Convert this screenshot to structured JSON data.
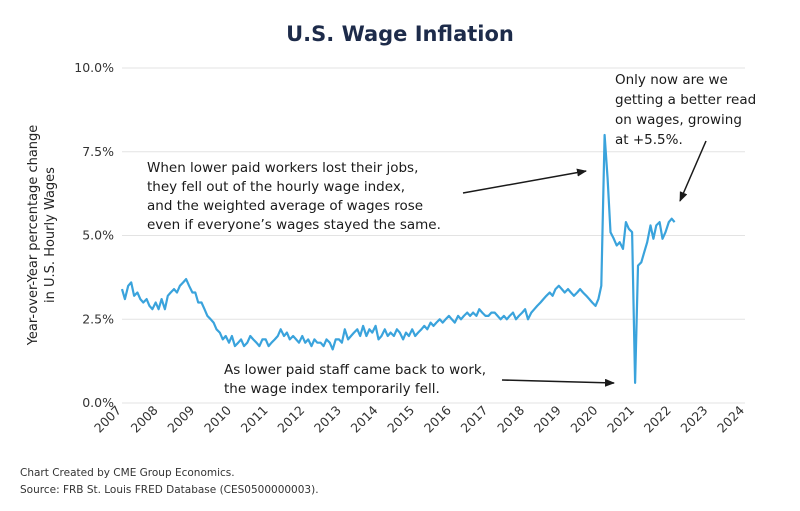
{
  "chart_data": {
    "type": "line",
    "title": "U.S. Wage Inflation",
    "ylabel_lines": [
      "Year-over-Year percentage change",
      "in U.S. Hourly Wages"
    ],
    "xlabel": "",
    "x_ticks": [
      "2007",
      "2008",
      "2009",
      "2010",
      "2011",
      "2012",
      "2013",
      "2014",
      "2015",
      "2016",
      "2017",
      "2018",
      "2019",
      "2020",
      "2021",
      "2022",
      "2023",
      "2024"
    ],
    "xlim": [
      2007,
      2024
    ],
    "y_ticks": [
      {
        "value": 0.0,
        "label": "0.0%"
      },
      {
        "value": 2.5,
        "label": "2.5%"
      },
      {
        "value": 5.0,
        "label": "5.0%"
      },
      {
        "value": 7.5,
        "label": "7.5%"
      },
      {
        "value": 10.0,
        "label": "10.0%"
      }
    ],
    "ylim": [
      0,
      10
    ],
    "grid": true,
    "line_color": "#3aa3dc",
    "series": [
      {
        "x": [
          2007.0,
          2007.08,
          2007.17,
          2007.25,
          2007.33,
          2007.42,
          2007.5,
          2007.58,
          2007.67,
          2007.75,
          2007.83,
          2007.92,
          2008.0,
          2008.08,
          2008.17,
          2008.25,
          2008.33,
          2008.42,
          2008.5,
          2008.58,
          2008.67,
          2008.75,
          2008.83,
          2008.92,
          2009.0,
          2009.08,
          2009.17,
          2009.25,
          2009.33,
          2009.42,
          2009.5,
          2009.58,
          2009.67,
          2009.75,
          2009.83,
          2009.92,
          2010.0,
          2010.08,
          2010.17,
          2010.25,
          2010.33,
          2010.42,
          2010.5,
          2010.58,
          2010.67,
          2010.75,
          2010.83,
          2010.92,
          2011.0,
          2011.08,
          2011.17,
          2011.25,
          2011.33,
          2011.42,
          2011.5,
          2011.58,
          2011.67,
          2011.75,
          2011.83,
          2011.92,
          2012.0,
          2012.08,
          2012.17,
          2012.25,
          2012.33,
          2012.42,
          2012.5,
          2012.58,
          2012.67,
          2012.75,
          2012.83,
          2012.92,
          2013.0,
          2013.08,
          2013.17,
          2013.25,
          2013.33,
          2013.42,
          2013.5,
          2013.58,
          2013.67,
          2013.75,
          2013.83,
          2013.92,
          2014.0,
          2014.08,
          2014.17,
          2014.25,
          2014.33,
          2014.42,
          2014.5,
          2014.58,
          2014.67,
          2014.75,
          2014.83,
          2014.92,
          2015.0,
          2015.08,
          2015.17,
          2015.25,
          2015.33,
          2015.42,
          2015.5,
          2015.58,
          2015.67,
          2015.75,
          2015.83,
          2015.92,
          2016.0,
          2016.08,
          2016.17,
          2016.25,
          2016.33,
          2016.42,
          2016.5,
          2016.58,
          2016.67,
          2016.75,
          2016.83,
          2016.92,
          2017.0,
          2017.08,
          2017.17,
          2017.25,
          2017.33,
          2017.42,
          2017.5,
          2017.58,
          2017.67,
          2017.75,
          2017.83,
          2017.92,
          2018.0,
          2018.08,
          2018.17,
          2018.25,
          2018.33,
          2018.42,
          2018.5,
          2018.58,
          2018.67,
          2018.75,
          2018.83,
          2018.92,
          2019.0,
          2019.08,
          2019.17,
          2019.25,
          2019.33,
          2019.42,
          2019.5,
          2019.58,
          2019.67,
          2019.75,
          2019.83,
          2019.92,
          2020.0,
          2020.08,
          2020.17,
          2020.25,
          2020.33,
          2020.42,
          2020.5,
          2020.58,
          2020.67,
          2020.75,
          2020.83,
          2020.92,
          2021.0,
          2021.08,
          2021.17,
          2021.25,
          2021.33,
          2021.42,
          2021.5,
          2021.58,
          2021.67,
          2021.75,
          2021.83,
          2021.92,
          2022.0,
          2022.08
        ],
        "y": [
          3.4,
          3.1,
          3.5,
          3.6,
          3.2,
          3.3,
          3.1,
          3.0,
          3.1,
          2.9,
          2.8,
          3.0,
          2.8,
          3.1,
          2.8,
          3.2,
          3.3,
          3.4,
          3.3,
          3.5,
          3.6,
          3.7,
          3.5,
          3.3,
          3.3,
          3.0,
          3.0,
          2.8,
          2.6,
          2.5,
          2.4,
          2.2,
          2.1,
          1.9,
          2.0,
          1.8,
          2.0,
          1.7,
          1.8,
          1.9,
          1.7,
          1.8,
          2.0,
          1.9,
          1.8,
          1.7,
          1.9,
          1.9,
          1.7,
          1.8,
          1.9,
          2.0,
          2.2,
          2.0,
          2.1,
          1.9,
          2.0,
          1.9,
          1.8,
          2.0,
          1.8,
          1.9,
          1.7,
          1.9,
          1.8,
          1.8,
          1.7,
          1.9,
          1.8,
          1.6,
          1.9,
          1.9,
          1.8,
          2.2,
          1.9,
          2.0,
          2.1,
          2.2,
          2.0,
          2.3,
          2.0,
          2.2,
          2.1,
          2.3,
          1.9,
          2.0,
          2.2,
          2.0,
          2.1,
          2.0,
          2.2,
          2.1,
          1.9,
          2.1,
          2.0,
          2.2,
          2.0,
          2.1,
          2.2,
          2.3,
          2.2,
          2.4,
          2.3,
          2.4,
          2.5,
          2.4,
          2.5,
          2.6,
          2.5,
          2.4,
          2.6,
          2.5,
          2.6,
          2.7,
          2.6,
          2.7,
          2.6,
          2.8,
          2.7,
          2.6,
          2.6,
          2.7,
          2.7,
          2.6,
          2.5,
          2.6,
          2.5,
          2.6,
          2.7,
          2.5,
          2.6,
          2.7,
          2.8,
          2.5,
          2.7,
          2.8,
          2.9,
          3.0,
          3.1,
          3.2,
          3.3,
          3.2,
          3.4,
          3.5,
          3.4,
          3.3,
          3.4,
          3.3,
          3.2,
          3.3,
          3.4,
          3.3,
          3.2,
          3.1,
          3.0,
          2.9,
          3.1,
          3.5,
          8.0,
          6.7,
          5.1,
          4.9,
          4.7,
          4.8,
          4.6,
          5.4,
          5.2,
          5.1,
          0.6,
          4.1,
          4.2,
          4.5,
          4.8,
          5.3,
          4.9,
          5.3,
          5.4,
          4.9,
          5.1,
          5.4,
          5.5,
          5.4
        ]
      }
    ],
    "annotations": [
      {
        "lines": [
          "When lower paid workers lost their jobs,",
          "they fell out of the hourly wage index,",
          "and the weighted average of wages rose",
          "even if everyone’s wages stayed the same."
        ]
      },
      {
        "lines": [
          "Only now are we",
          "getting a better read",
          "on wages, growing",
          "at +5.5%."
        ]
      },
      {
        "lines": [
          "As lower paid staff came back to work,",
          "the wage index temporarily fell."
        ]
      }
    ],
    "footer_lines": [
      "Chart Created by CME Group Economics.",
      "Source: FRB St. Louis FRED Database (CES0500000003)."
    ]
  }
}
